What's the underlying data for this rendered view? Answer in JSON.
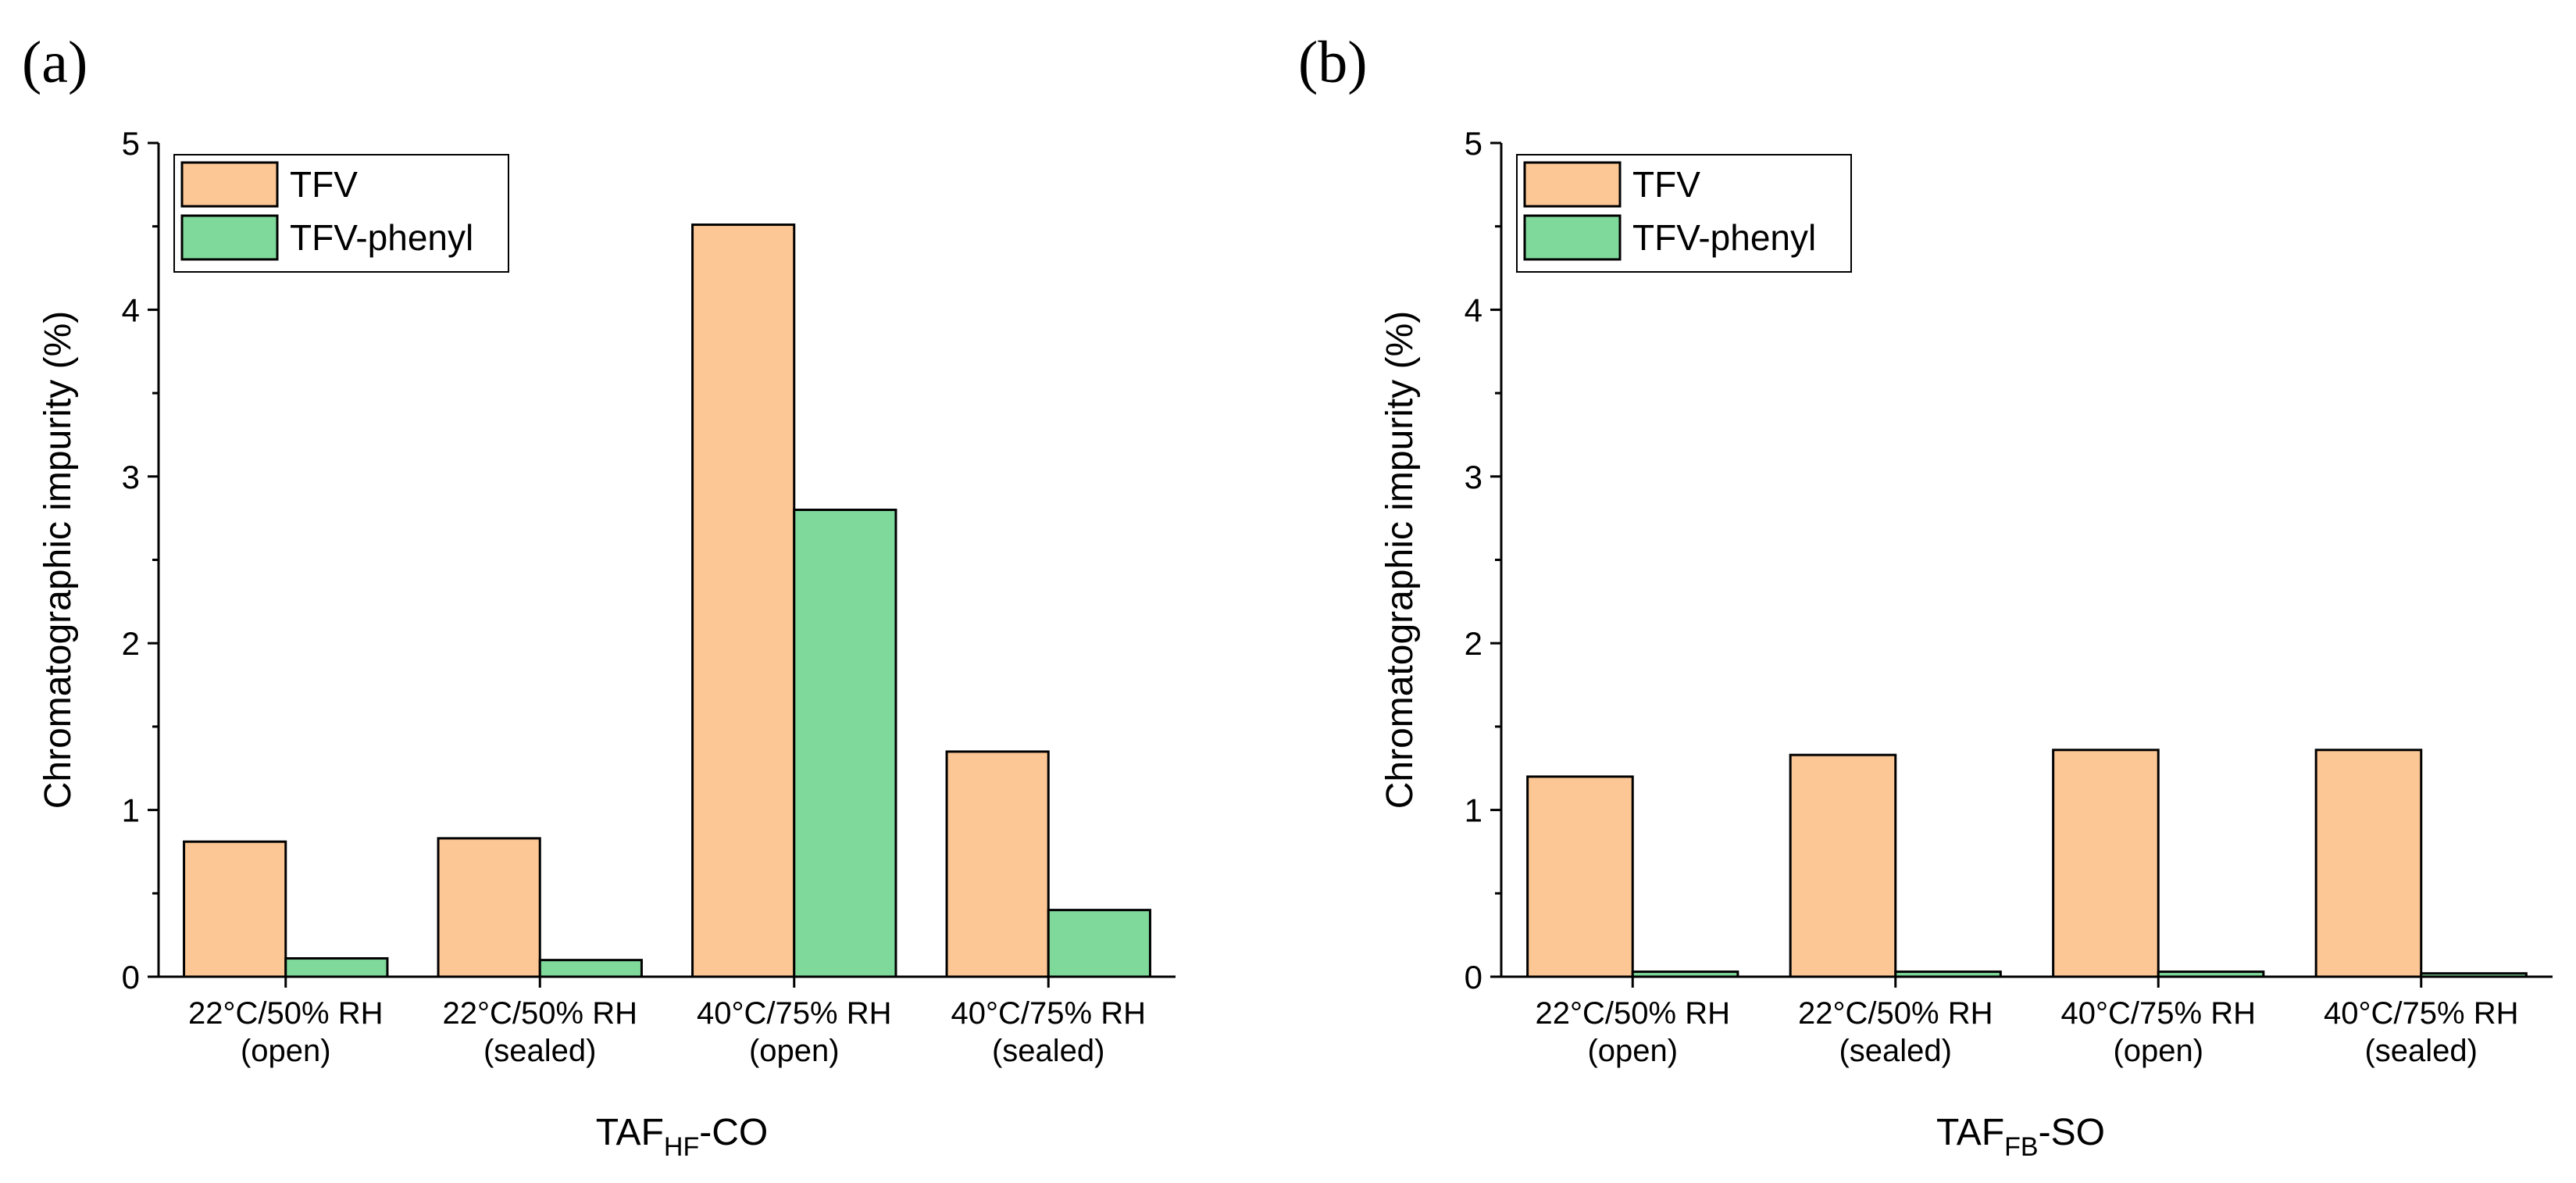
{
  "colors": {
    "TFV": "#fdc795",
    "TFV-phenyl": "#7fd99b"
  },
  "chart_data": [
    {
      "type": "bar",
      "panel_label": "(a)",
      "title": "",
      "xlabel_main": "TAF",
      "xlabel_sub": "HF",
      "xlabel_suffix": "-CO",
      "ylabel": "Chromatographic impurity (%)",
      "ylim": [
        0,
        5
      ],
      "yticks": [
        "0",
        "1",
        "2",
        "3",
        "4",
        "5"
      ],
      "legend_position": "top-left",
      "categories": [
        {
          "line1": "22°C/50% RH",
          "line2": "(open)"
        },
        {
          "line1": "22°C/50% RH",
          "line2": "(sealed)"
        },
        {
          "line1": "40°C/75% RH",
          "line2": "(open)"
        },
        {
          "line1": "40°C/75% RH",
          "line2": "(sealed)"
        }
      ],
      "series": [
        {
          "name": "TFV",
          "values": [
            0.81,
            0.83,
            4.51,
            1.35
          ]
        },
        {
          "name": "TFV-phenyl",
          "values": [
            0.11,
            0.1,
            2.8,
            0.4
          ]
        }
      ]
    },
    {
      "type": "bar",
      "panel_label": "(b)",
      "title": "",
      "xlabel_main": "TAF",
      "xlabel_sub": "FB",
      "xlabel_suffix": "-SO",
      "ylabel": "Chromatographic impurity (%)",
      "ylim": [
        0,
        5
      ],
      "yticks": [
        "0",
        "1",
        "2",
        "3",
        "4",
        "5"
      ],
      "legend_position": "top-left",
      "categories": [
        {
          "line1": "22°C/50% RH",
          "line2": "(open)"
        },
        {
          "line1": "22°C/50% RH",
          "line2": "(sealed)"
        },
        {
          "line1": "40°C/75% RH",
          "line2": "(open)"
        },
        {
          "line1": "40°C/75% RH",
          "line2": "(sealed)"
        }
      ],
      "series": [
        {
          "name": "TFV",
          "values": [
            1.2,
            1.33,
            1.36,
            1.36
          ]
        },
        {
          "name": "TFV-phenyl",
          "values": [
            0.03,
            0.03,
            0.03,
            0.02
          ]
        }
      ]
    }
  ]
}
